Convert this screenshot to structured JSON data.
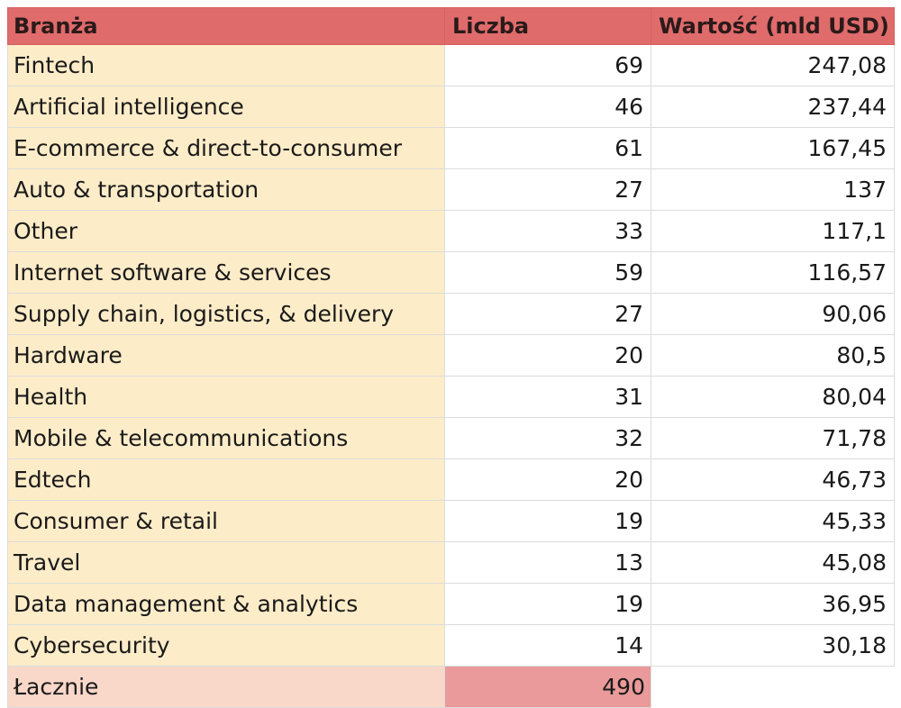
{
  "header": {
    "col_industry": "Branża",
    "col_count": "Liczba",
    "col_value": "Wartość (mld USD)"
  },
  "rows": [
    {
      "industry": "Fintech",
      "count": "69",
      "value": "247,08"
    },
    {
      "industry": "Artificial intelligence",
      "count": "46",
      "value": "237,44"
    },
    {
      "industry": "E-commerce & direct-to-consumer",
      "count": "61",
      "value": "167,45"
    },
    {
      "industry": "Auto & transportation",
      "count": "27",
      "value": "137"
    },
    {
      "industry": "Other",
      "count": "33",
      "value": "117,1"
    },
    {
      "industry": "Internet software & services",
      "count": "59",
      "value": "116,57"
    },
    {
      "industry": "Supply chain, logistics, & delivery",
      "count": "27",
      "value": "90,06"
    },
    {
      "industry": "Hardware",
      "count": "20",
      "value": "80,5"
    },
    {
      "industry": "Health",
      "count": "31",
      "value": "80,04"
    },
    {
      "industry": "Mobile & telecommunications",
      "count": "32",
      "value": "71,78"
    },
    {
      "industry": "Edtech",
      "count": "20",
      "value": "46,73"
    },
    {
      "industry": "Consumer & retail",
      "count": "19",
      "value": "45,33"
    },
    {
      "industry": "Travel",
      "count": "13",
      "value": "45,08"
    },
    {
      "industry": "Data management & analytics",
      "count": "19",
      "value": "36,95"
    },
    {
      "industry": "Cybersecurity",
      "count": "14",
      "value": "30,18"
    }
  ],
  "total": {
    "label": "Łacznie",
    "count": "490"
  },
  "colors": {
    "header_bg": "#e06b6b",
    "name_col_bg": "#fdecc8",
    "total_label_bg": "#f9d7c9",
    "total_count_bg": "#ea9a9a"
  }
}
